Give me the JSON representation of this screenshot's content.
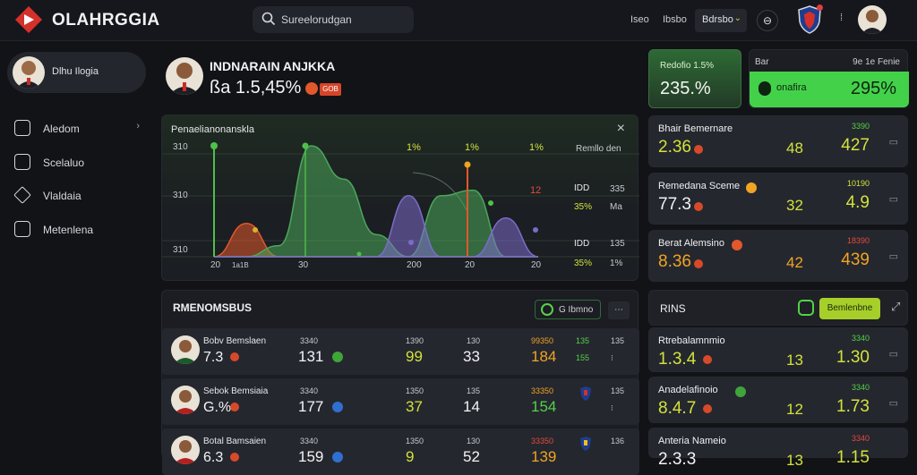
{
  "header": {
    "brand": "OLAHRGGIA",
    "search_placeholder": "Sureelorudgan",
    "nav": [
      "Iseo",
      "Ibsbo"
    ],
    "select_value": "Bdrsbo",
    "shield_icon": "shield-icon",
    "colors": {
      "accent": "#52d248",
      "brand_red": "#d6302a"
    }
  },
  "sidebar": {
    "profile_name": "Dlhu Ilogia",
    "items": [
      {
        "label": "Aledom",
        "icon": "magnet-icon",
        "arrow": "›"
      },
      {
        "label": "Scelaluo",
        "icon": "document-icon",
        "arrow": ""
      },
      {
        "label": "Vlaldaia",
        "icon": "brush-icon",
        "arrow": ""
      },
      {
        "label": "Metenlena",
        "icon": "gear-icon",
        "arrow": ""
      }
    ]
  },
  "hero": {
    "title": "INDNARAIN ANJKKA",
    "value": "ßa 1.5,45%",
    "badge": "GOB"
  },
  "chart": {
    "title": "Penaelianonanskla",
    "close": "×",
    "top_labels": [
      "1%",
      "1%",
      "1%"
    ],
    "legend_title": "Remllo den",
    "legend_rows": [
      {
        "label": "IDD",
        "value": "335"
      },
      {
        "label": "35%",
        "value": "Ma"
      },
      {
        "label": "IDD",
        "value": "135"
      },
      {
        "label": "35%",
        "value": "1%"
      }
    ],
    "mid_red": "12",
    "y_labels": [
      "310",
      "310",
      "310"
    ],
    "x_labels": [
      "20",
      "1a1B",
      "30",
      "200",
      "20",
      "20"
    ]
  },
  "chart_data": {
    "type": "area",
    "x": [
      0,
      1,
      2,
      3,
      4,
      5,
      6,
      7,
      8,
      9,
      10
    ],
    "series": [
      {
        "color": "#e2572c",
        "values": [
          0,
          30,
          0,
          0,
          0,
          0,
          0,
          0,
          0,
          0,
          0
        ]
      },
      {
        "color": "#4aa85a",
        "values": [
          0,
          0,
          10,
          100,
          70,
          20,
          0,
          55,
          60,
          0,
          0
        ]
      },
      {
        "color": "#7b6cc8",
        "values": [
          0,
          0,
          0,
          0,
          0,
          0,
          55,
          0,
          0,
          35,
          0
        ]
      }
    ],
    "ylim": [
      0,
      100
    ]
  },
  "table": {
    "title": "RMENOMSBUS",
    "filter_label": "G Ibmno",
    "more": "⋯",
    "rows": [
      {
        "name": "Bobv Bemslaen",
        "value": "7.3",
        "c1_small": "3340",
        "c1_big": "131",
        "c2_small": "1390",
        "c2_big": "99",
        "c3_small": "130",
        "c3_big": "33",
        "c4_small": "99350",
        "c4_big": "184",
        "c5_small": "135",
        "c5_big": "155",
        "c6": "135"
      },
      {
        "name": "Sebok Bemsiaia",
        "value": "G.%",
        "c1_small": "3340",
        "c1_big": "177",
        "c2_small": "1350",
        "c2_big": "37",
        "c3_small": "135",
        "c3_big": "14",
        "c4_small": "33350",
        "c4_big": "154",
        "c5_small": "",
        "c5_big": "",
        "c6": "135"
      },
      {
        "name": "Botal Bamsaien",
        "value": "6.3",
        "c1_small": "3340",
        "c1_big": "159",
        "c2_small": "1350",
        "c2_big": "9",
        "c3_small": "130",
        "c3_big": "52",
        "c4_small": "33350",
        "c4_big": "139",
        "c5_small": "",
        "c5_big": "",
        "c6": "136"
      }
    ]
  },
  "stats": {
    "card1_label": "Redofio 1.5%",
    "card1_value": "235.%",
    "card2_label1": "Bar",
    "card2_label2": "9e 1e Fenie",
    "card2_name": "onafira",
    "card2_value": "295%"
  },
  "right_cards": [
    {
      "title": "Bhair Bemernare",
      "value": "2.36",
      "mid": "48",
      "small": "3390",
      "big": "427"
    },
    {
      "title": "Remedana Sceme",
      "value": "77.3",
      "mid": "32",
      "small": "10190",
      "big": "4.9"
    },
    {
      "title": "Berat Alemsino",
      "value": "8.36",
      "mid": "42",
      "small": "18390",
      "big": "439"
    }
  ],
  "right_section": {
    "title": "RINS",
    "button": "Bemlenbne",
    "cards": [
      {
        "title": "Rtrebalamnmio",
        "value": "1.3.4",
        "mid": "13",
        "small": "3340",
        "big": "1.30"
      },
      {
        "title": "Anadelafinoio",
        "value": "8.4.7",
        "mid": "12",
        "small": "3340",
        "big": "1.73"
      },
      {
        "title": "Anteria Nameio",
        "value": "2.3.3",
        "mid": "13",
        "small": "3340",
        "big": "1.15"
      }
    ]
  }
}
